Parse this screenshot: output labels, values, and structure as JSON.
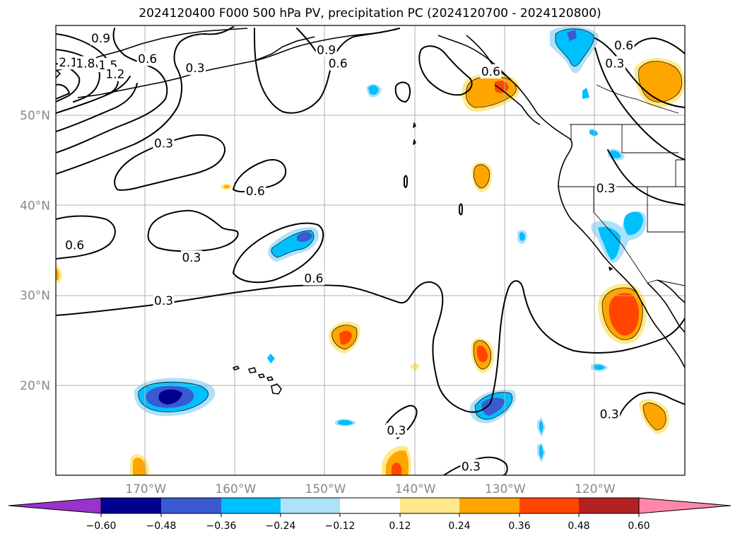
{
  "title": "2024120400 F000 500 hPa PV, precipitation PC (2024120700 - 2024120800)",
  "map": {
    "lon_range": [
      -180,
      -110
    ],
    "lat_range": [
      10,
      60
    ],
    "lat_labels": [
      {
        "lat": 50,
        "text": "50°N"
      },
      {
        "lat": 40,
        "text": "40°N"
      },
      {
        "lat": 30,
        "text": "30°N"
      },
      {
        "lat": 20,
        "text": "20°N"
      }
    ],
    "lon_labels": [
      {
        "lon": -170,
        "text": "170°W"
      },
      {
        "lon": -160,
        "text": "160°W"
      },
      {
        "lon": -150,
        "text": "150°W"
      },
      {
        "lon": -140,
        "text": "140°W"
      },
      {
        "lon": -130,
        "text": "130°W"
      },
      {
        "lon": -120,
        "text": "120°W"
      }
    ],
    "contour_labels": [
      {
        "text": "0.9",
        "lon": -175,
        "lat": 58.6
      },
      {
        "text": "2.1",
        "lon": -178.6,
        "lat": 55.9
      },
      {
        "text": "1.8",
        "lon": -176.7,
        "lat": 55.8
      },
      {
        "text": "1.5",
        "lon": -174.2,
        "lat": 55.6
      },
      {
        "text": "1.2",
        "lon": -173.4,
        "lat": 54.6
      },
      {
        "text": "0.6",
        "lon": -169.8,
        "lat": 56.3
      },
      {
        "text": "0.3",
        "lon": -164.5,
        "lat": 55.3
      },
      {
        "text": "0.9",
        "lon": -149.9,
        "lat": 57.3
      },
      {
        "text": "0.6",
        "lon": -148.6,
        "lat": 55.8
      },
      {
        "text": "0.6",
        "lon": -131.6,
        "lat": 54.9
      },
      {
        "text": "0.6",
        "lon": -116.8,
        "lat": 57.8
      },
      {
        "text": "0.3",
        "lon": -117.8,
        "lat": 55.8
      },
      {
        "text": "0.3",
        "lon": -168.0,
        "lat": 46.9
      },
      {
        "text": "0.6",
        "lon": -157.8,
        "lat": 41.6
      },
      {
        "text": "0.3",
        "lon": -118.8,
        "lat": 41.9
      },
      {
        "text": "0.6",
        "lon": -177.9,
        "lat": 35.6
      },
      {
        "text": "0.3",
        "lon": -164.9,
        "lat": 34.2
      },
      {
        "text": "0.6",
        "lon": -151.3,
        "lat": 31.9
      },
      {
        "text": "0.3",
        "lon": -168.0,
        "lat": 29.4
      },
      {
        "text": "0.3",
        "lon": -118.4,
        "lat": 16.8
      },
      {
        "text": "0.3",
        "lon": -142.1,
        "lat": 15.0
      },
      {
        "text": "0.3",
        "lon": -133.8,
        "lat": 11.0
      }
    ]
  },
  "legend": {
    "tick_labels": [
      "−0.60",
      "−0.48",
      "−0.36",
      "−0.24",
      "−0.12",
      "0.12",
      "0.24",
      "0.36",
      "0.48",
      "0.60"
    ],
    "colors": [
      "#9933cc",
      "#000090",
      "#3a5ad0",
      "#00bfff",
      "#ade1fa",
      "#ffffff",
      "#ffe98a",
      "#ffa500",
      "#ff4500",
      "#b22222",
      "#ff88aa"
    ]
  },
  "colors": {
    "neg_1": "#ade1fa",
    "neg_2": "#00bfff",
    "neg_3": "#3a5ad0",
    "neg_4": "#000090",
    "pos_1": "#ffe98a",
    "pos_2": "#ffa500",
    "pos_3": "#ff4500"
  }
}
